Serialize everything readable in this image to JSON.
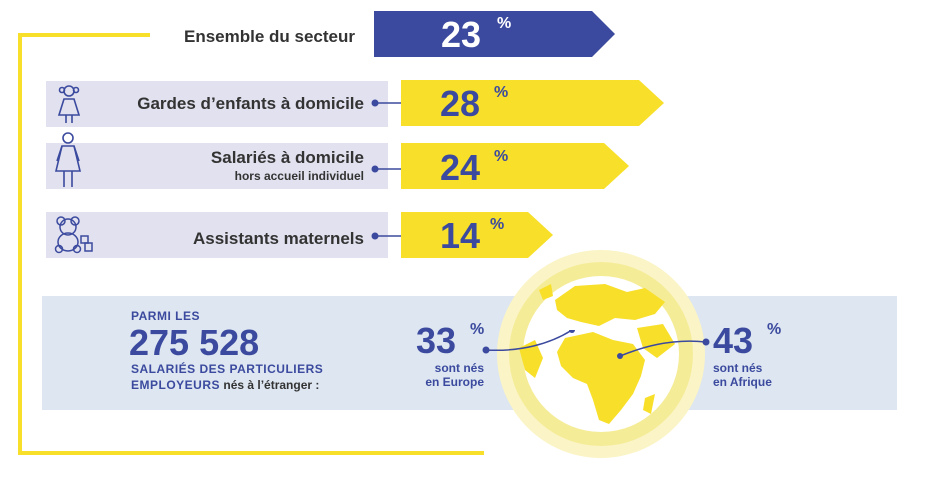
{
  "chart_data": {
    "type": "bar",
    "series": [
      {
        "values": [
          23,
          28,
          24,
          14
        ]
      }
    ],
    "categories": [
      "Ensemble du secteur",
      "Gardes d’enfants à domicile",
      "Salariés à domicile",
      "Assistants maternels"
    ],
    "header": {
      "label": "Ensemble du secteur",
      "value": "23",
      "unit": "%"
    },
    "rows": [
      {
        "label": "Gardes d’enfants à domicile",
        "sublabel": "",
        "value": "28",
        "unit": "%",
        "icon": "girl-icon"
      },
      {
        "label": "Salariés à domicile",
        "sublabel": "hors accueil individuel",
        "value": "24",
        "unit": "%",
        "icon": "woman-icon"
      },
      {
        "label": "Assistants maternels",
        "sublabel": "",
        "value": "14",
        "unit": "%",
        "icon": "teddy-bear-icon"
      }
    ],
    "colors": {
      "navy": "#3b4a9e",
      "yellow": "#f8df2a",
      "lavender": "#e1e1ef",
      "panel": "#dde6f1"
    }
  },
  "summary": {
    "intro": "PARMI LES",
    "total": "275 528",
    "line1": "SALARIÉS DES PARTICULIERS",
    "line2_caps": "EMPLOYEURS",
    "line2_rest": "nés à l’étranger :",
    "europe": {
      "value": "33",
      "unit": "%",
      "line1": "sont nés",
      "line2": "en Europe"
    },
    "afrique": {
      "value": "43",
      "unit": "%",
      "line1": "sont nés",
      "line2": "en Afrique"
    }
  }
}
